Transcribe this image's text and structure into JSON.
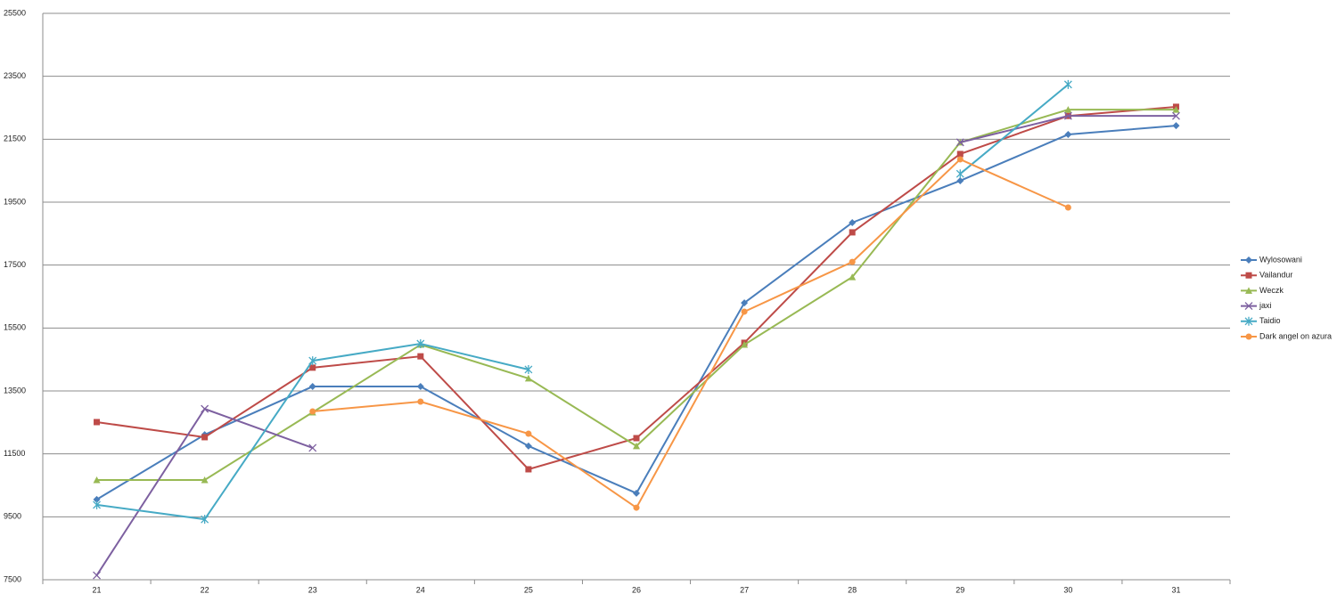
{
  "chart_data": {
    "type": "line",
    "categories": [
      "21",
      "22",
      "23",
      "24",
      "25",
      "26",
      "27",
      "28",
      "29",
      "30",
      "31"
    ],
    "ylim": [
      7500,
      25500
    ],
    "yticks": [
      7500,
      9500,
      11500,
      13500,
      15500,
      17500,
      19500,
      21500,
      23500,
      25500
    ],
    "grid": true,
    "legend": "right",
    "series": [
      {
        "name": "Wylosowani",
        "color": "#4a7ebb",
        "marker": "diamond",
        "values": [
          10050,
          12110,
          13640,
          13640,
          11750,
          10250,
          16300,
          18850,
          20180,
          21650,
          21930
        ]
      },
      {
        "name": "Vailandur",
        "color": "#be4b48",
        "marker": "square",
        "values": [
          12510,
          12030,
          14240,
          14600,
          11010,
          12000,
          15030,
          18540,
          21030,
          22240,
          22530
        ]
      },
      {
        "name": "Weczk",
        "color": "#98b954",
        "marker": "triangle",
        "values": [
          10670,
          10670,
          12820,
          14970,
          13900,
          11750,
          14970,
          17120,
          21400,
          22440,
          22440
        ]
      },
      {
        "name": "jaxi",
        "color": "#7d60a0",
        "marker": "x",
        "values": [
          7640,
          12930,
          11690,
          null,
          null,
          null,
          null,
          null,
          21400,
          22240,
          22240
        ]
      },
      {
        "name": "Taidio",
        "color": "#46aac5",
        "marker": "star",
        "values": [
          9880,
          9420,
          14460,
          15000,
          14180,
          null,
          null,
          null,
          20400,
          23240,
          null
        ]
      },
      {
        "name": "Dark angel on azura",
        "color": "#f79646",
        "marker": "circle",
        "values": [
          null,
          null,
          12850,
          13160,
          12140,
          9790,
          16020,
          17600,
          20860,
          19330,
          null
        ]
      }
    ]
  }
}
